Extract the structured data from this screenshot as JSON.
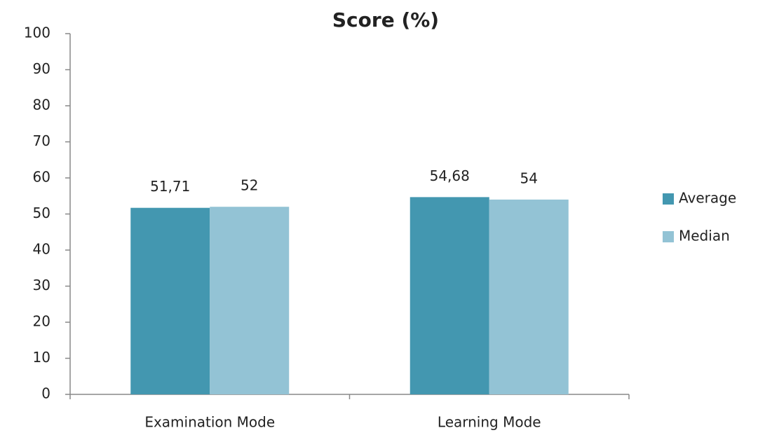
{
  "chart_data": {
    "type": "bar",
    "title": "Score (%)",
    "categories": [
      "Examination Mode",
      "Learning Mode"
    ],
    "series": [
      {
        "name": "Average",
        "color": "#4397b0",
        "values": [
          51.71,
          54.68
        ],
        "value_labels": [
          "51,71",
          "54,68"
        ]
      },
      {
        "name": "Median",
        "color": "#93c3d5",
        "values": [
          52,
          54
        ],
        "value_labels": [
          "52",
          "54"
        ]
      }
    ],
    "ylim": [
      0,
      100
    ],
    "yticks": [
      0,
      10,
      20,
      30,
      40,
      50,
      60,
      70,
      80,
      90,
      100
    ],
    "grid": false,
    "legend": "right"
  }
}
